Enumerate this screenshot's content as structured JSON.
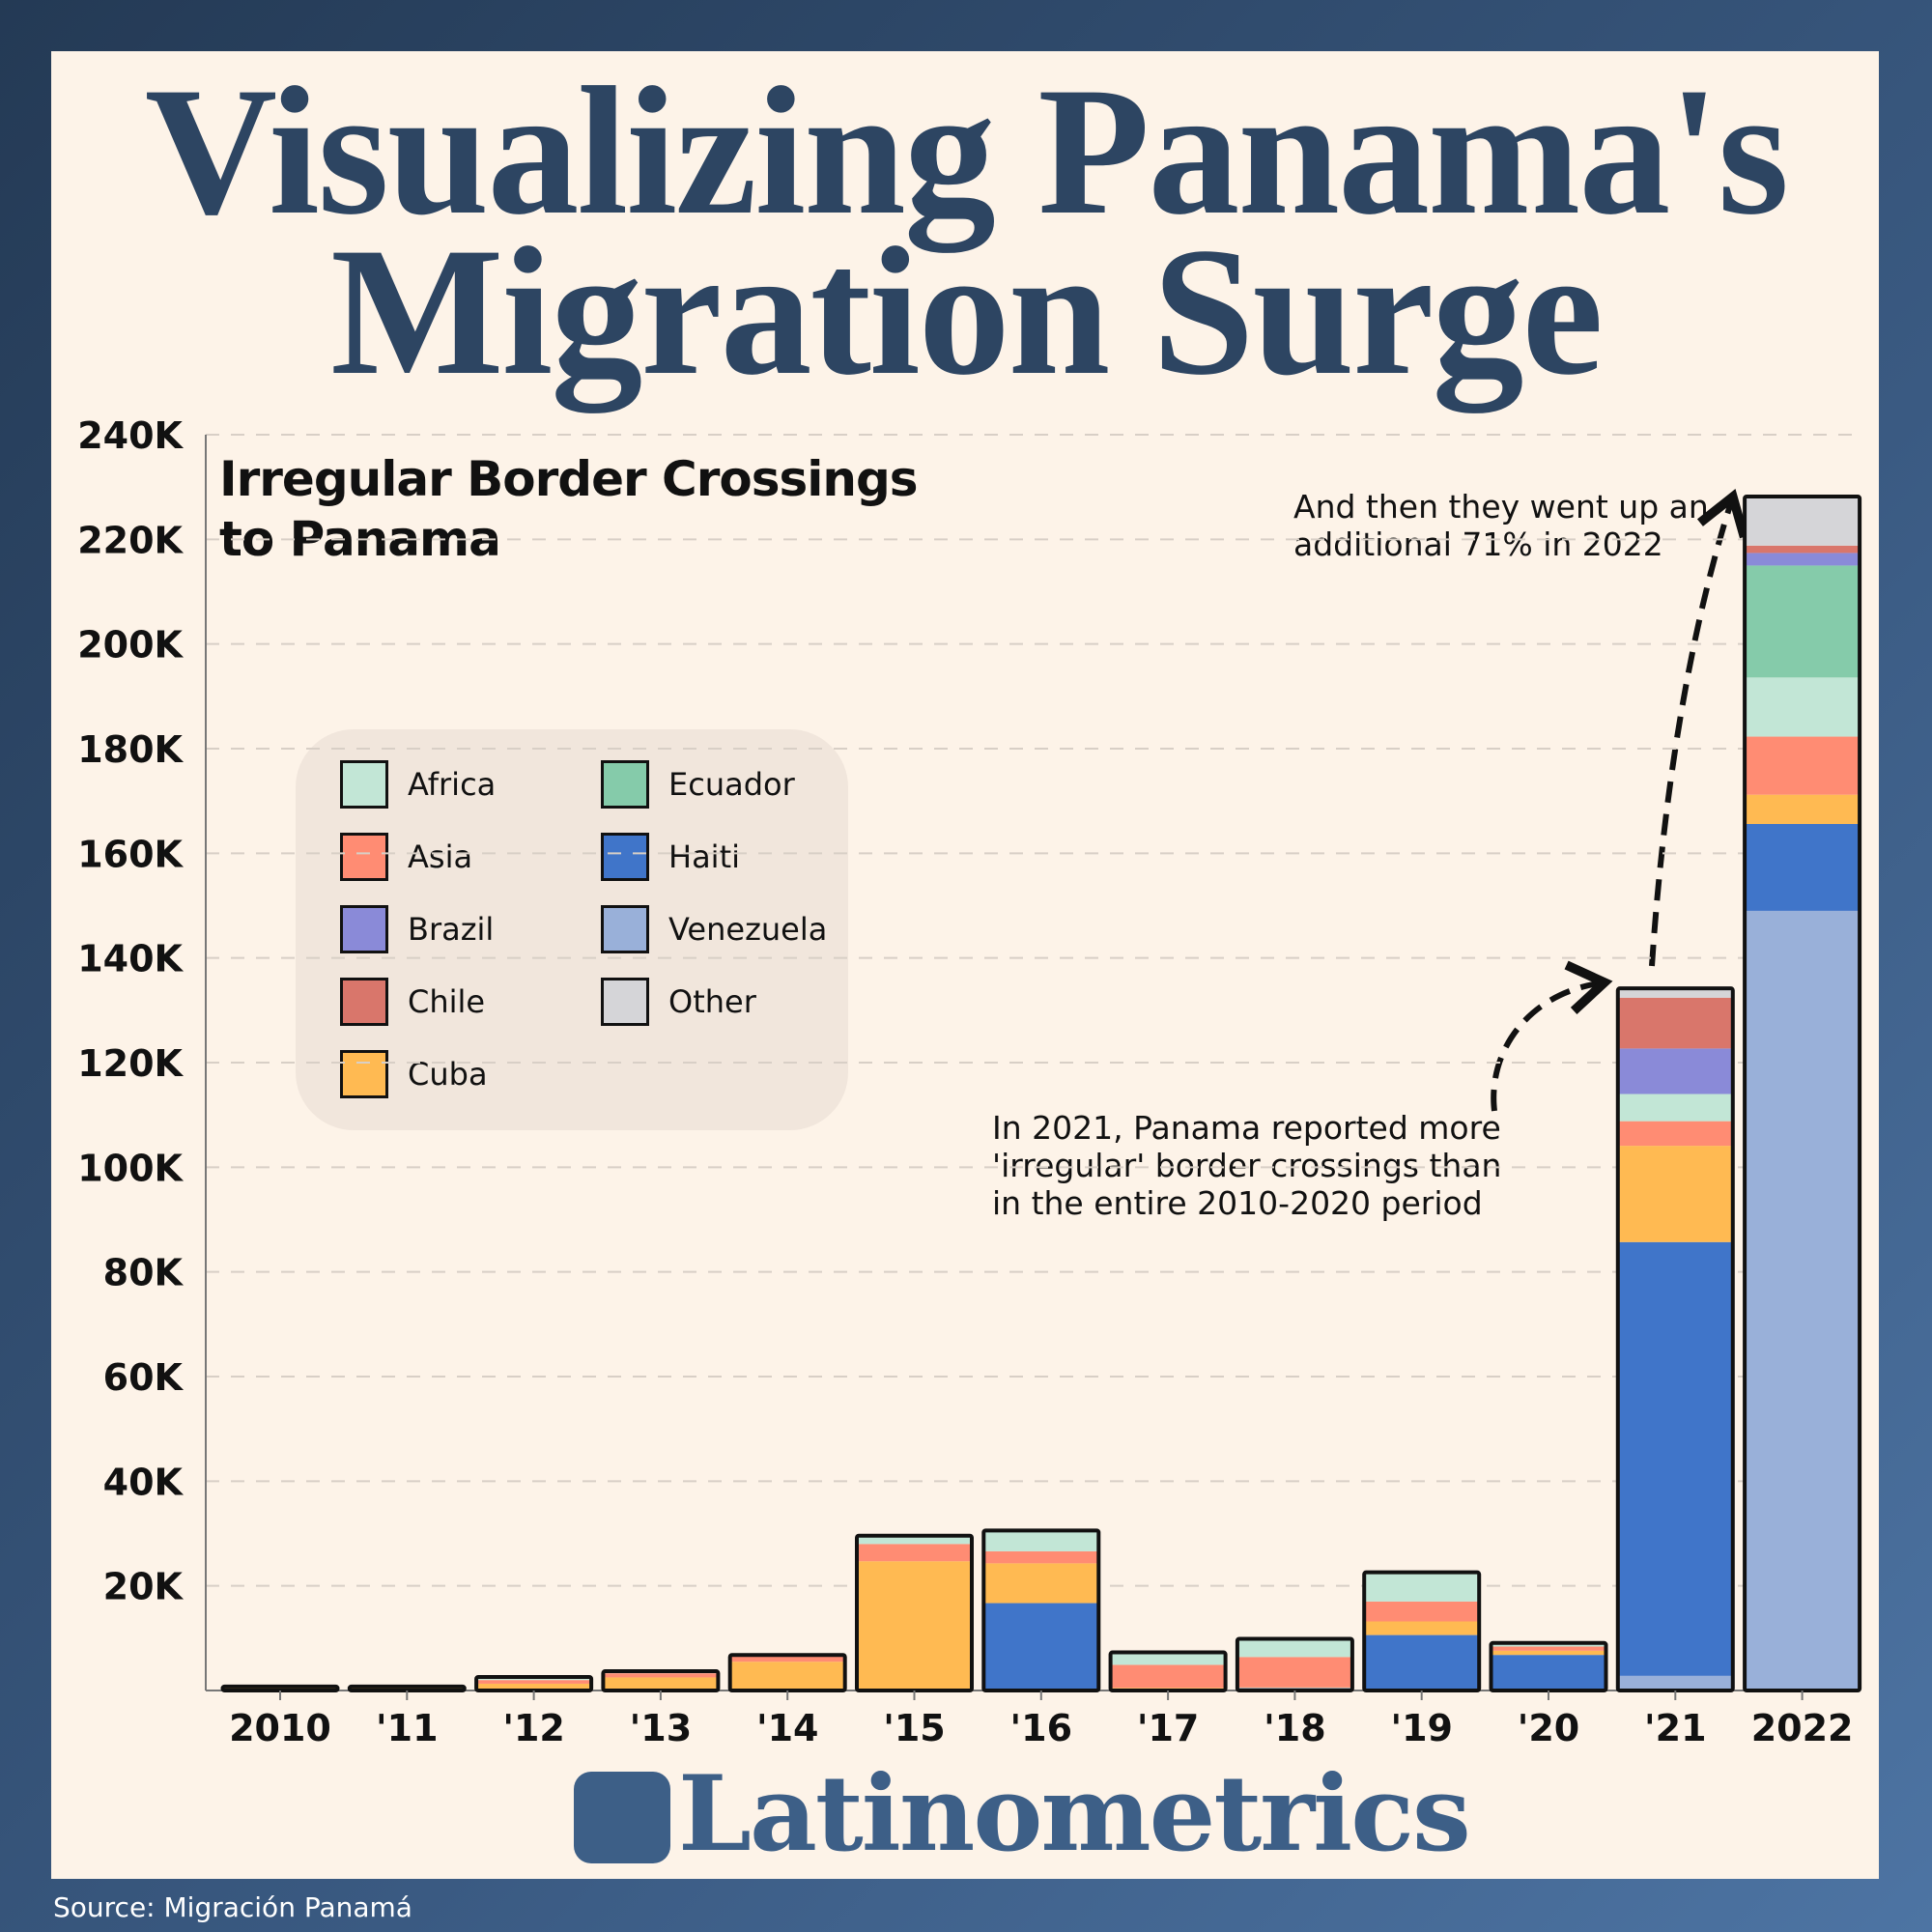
{
  "title_line1": "Visualizing Panama's",
  "title_line2": "Migration Surge",
  "brand": "Latinometrics",
  "source": "Source: Migración Panamá",
  "annotations": {
    "a2022": [
      "And then they went up an",
      "additional 71% in 2022"
    ],
    "a2021": [
      "In 2021, Panama reported more",
      "'irregular' border crossings than",
      "in the entire 2010-2020 period"
    ]
  },
  "chart_data": {
    "type": "bar",
    "stacked": true,
    "title": "Irregular Border Crossings to Panama",
    "title_lines": [
      "Irregular Border Crossings",
      "to Panama"
    ],
    "categories": [
      "2010",
      "'11",
      "'12",
      "'13",
      "'14",
      "'15",
      "'16",
      "'17",
      "'18",
      "'19",
      "'20",
      "'21",
      "2022"
    ],
    "ylim": [
      0,
      240000
    ],
    "yticks": [
      20000,
      40000,
      60000,
      80000,
      100000,
      120000,
      140000,
      160000,
      180000,
      200000,
      220000,
      240000
    ],
    "ytick_labels": [
      "20K",
      "40K",
      "60K",
      "80K",
      "100K",
      "120K",
      "140K",
      "160K",
      "180K",
      "200K",
      "220K",
      "240K"
    ],
    "grid": "horizontal-dashed",
    "legend_placement": "left-middle",
    "series": [
      {
        "name": "Venezuela",
        "color": "#99b0d9",
        "values": [
          0,
          0,
          0,
          0,
          0,
          0,
          0,
          0,
          400,
          0,
          0,
          2800,
          149000
        ]
      },
      {
        "name": "Haiti",
        "color": "#4075c9",
        "values": [
          0,
          0,
          0,
          0,
          0,
          0,
          16700,
          300,
          100,
          10600,
          6800,
          82900,
          16600
        ]
      },
      {
        "name": "Cuba",
        "color": "#ffba52",
        "values": [
          500,
          500,
          1300,
          2500,
          5500,
          24700,
          7600,
          200,
          100,
          2600,
          800,
          18400,
          5600
        ]
      },
      {
        "name": "Asia",
        "color": "#ff8c73",
        "values": [
          50,
          50,
          700,
          800,
          1000,
          3300,
          2300,
          4400,
          5800,
          3800,
          800,
          4700,
          11100
        ]
      },
      {
        "name": "Africa",
        "color": "#c2e6d6",
        "values": [
          30,
          30,
          400,
          200,
          100,
          1400,
          3800,
          2200,
          3300,
          5400,
          500,
          5200,
          11300
        ]
      },
      {
        "name": "Ecuador",
        "color": "#85cbaa",
        "values": [
          0,
          0,
          0,
          0,
          0,
          0,
          0,
          0,
          0,
          0,
          0,
          0,
          21400
        ]
      },
      {
        "name": "Brazil",
        "color": "#8a8ad8",
        "values": [
          0,
          0,
          0,
          0,
          0,
          0,
          0,
          0,
          0,
          0,
          0,
          8700,
          2400
        ]
      },
      {
        "name": "Chile",
        "color": "#d9766b",
        "values": [
          0,
          0,
          0,
          0,
          0,
          0,
          0,
          0,
          0,
          0,
          0,
          9700,
          1400
        ]
      },
      {
        "name": "Other",
        "color": "#d5d5d8",
        "values": [
          0,
          0,
          0,
          0,
          0,
          0,
          0,
          0,
          0,
          0,
          0,
          1600,
          9200
        ]
      }
    ],
    "legend_order": [
      "Africa",
      "Asia",
      "Brazil",
      "Chile",
      "Cuba",
      "Ecuador",
      "Haiti",
      "Venezuela",
      "Other"
    ]
  }
}
